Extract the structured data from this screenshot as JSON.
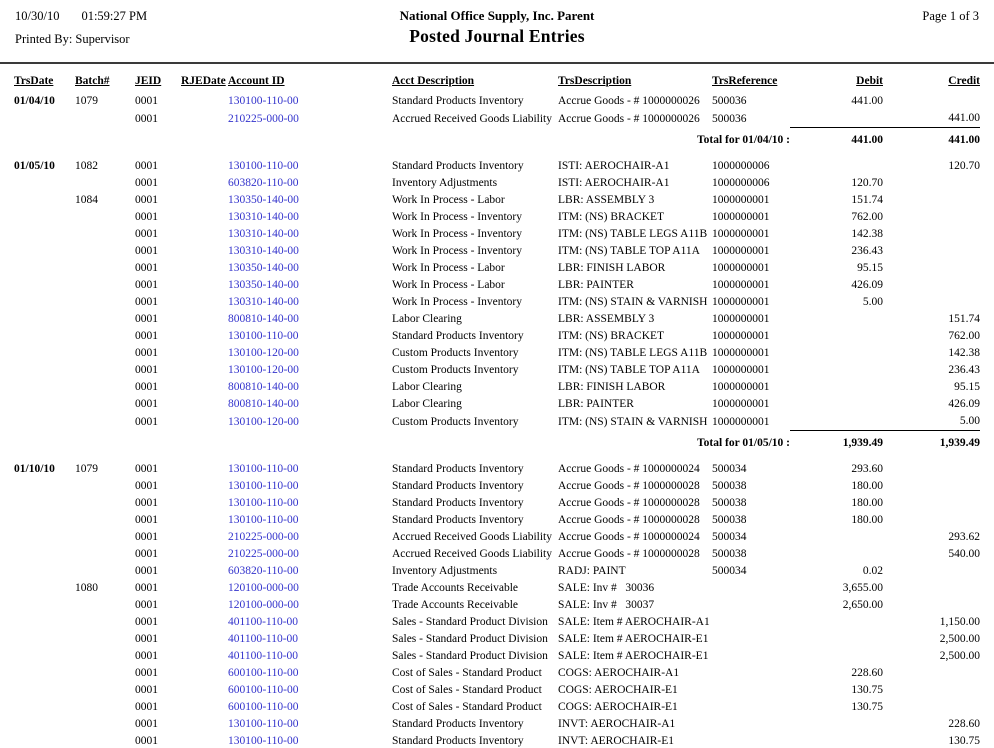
{
  "header": {
    "date": "10/30/10",
    "time": "01:59:27 PM",
    "printed_by_label": "Printed By:",
    "printed_by": "Supervisor",
    "company": "National Office Supply, Inc. Parent",
    "report_title": "Posted Journal Entries",
    "page_info": "Page 1 of  3"
  },
  "colors": {
    "account_link": "#3333CC",
    "header_rule": "#3a3a3a"
  },
  "table": {
    "columns": [
      "TrsDate",
      "Batch#",
      "JEID",
      "RJEDate",
      "Account ID",
      "Acct Description",
      "TrsDescription",
      "TrsReference",
      "Debit",
      "Credit"
    ],
    "rows": [
      {
        "type": "entry",
        "trsdate": "01/04/10",
        "batch": "1079",
        "jeid": "0001",
        "rjedate": "",
        "account": "130100-110-00",
        "acct_desc": "Standard Products Inventory",
        "trs_desc": "Accrue Goods - # 1000000026",
        "trs_ref": "500036",
        "debit": "441.00",
        "credit": ""
      },
      {
        "type": "entry",
        "trsdate": "",
        "batch": "",
        "jeid": "0001",
        "rjedate": "",
        "account": "210225-000-00",
        "acct_desc": "Accrued Received Goods Liability",
        "trs_desc": "Accrue Goods - # 1000000026",
        "trs_ref": "500036",
        "debit": "",
        "credit": "441.00"
      },
      {
        "type": "total",
        "label": "Total for 01/04/10 :",
        "debit": "441.00",
        "credit": "441.00"
      },
      {
        "type": "spacer"
      },
      {
        "type": "entry",
        "trsdate": "01/05/10",
        "batch": "1082",
        "jeid": "0001",
        "rjedate": "",
        "account": "130100-110-00",
        "acct_desc": "Standard Products Inventory",
        "trs_desc": "ISTI: AEROCHAIR-A1",
        "trs_ref": "1000000006",
        "debit": "",
        "credit": "120.70"
      },
      {
        "type": "entry",
        "trsdate": "",
        "batch": "",
        "jeid": "0001",
        "rjedate": "",
        "account": "603820-110-00",
        "acct_desc": "Inventory Adjustments",
        "trs_desc": "ISTI: AEROCHAIR-A1",
        "trs_ref": "1000000006",
        "debit": "120.70",
        "credit": ""
      },
      {
        "type": "entry",
        "trsdate": "",
        "batch": "1084",
        "jeid": "0001",
        "rjedate": "",
        "account": "130350-140-00",
        "acct_desc": "Work In Process - Labor",
        "trs_desc": "LBR: ASSEMBLY 3",
        "trs_ref": "1000000001",
        "debit": "151.74",
        "credit": ""
      },
      {
        "type": "entry",
        "trsdate": "",
        "batch": "",
        "jeid": "0001",
        "rjedate": "",
        "account": "130310-140-00",
        "acct_desc": "Work In Process - Inventory",
        "trs_desc": "ITM: (NS) BRACKET",
        "trs_ref": "1000000001",
        "debit": "762.00",
        "credit": ""
      },
      {
        "type": "entry",
        "trsdate": "",
        "batch": "",
        "jeid": "0001",
        "rjedate": "",
        "account": "130310-140-00",
        "acct_desc": "Work In Process - Inventory",
        "trs_desc": "ITM: (NS) TABLE LEGS A11B",
        "trs_ref": "1000000001",
        "debit": "142.38",
        "credit": ""
      },
      {
        "type": "entry",
        "trsdate": "",
        "batch": "",
        "jeid": "0001",
        "rjedate": "",
        "account": "130310-140-00",
        "acct_desc": "Work In Process - Inventory",
        "trs_desc": "ITM: (NS) TABLE TOP A11A",
        "trs_ref": "1000000001",
        "debit": "236.43",
        "credit": ""
      },
      {
        "type": "entry",
        "trsdate": "",
        "batch": "",
        "jeid": "0001",
        "rjedate": "",
        "account": "130350-140-00",
        "acct_desc": "Work In Process - Labor",
        "trs_desc": "LBR: FINISH LABOR",
        "trs_ref": "1000000001",
        "debit": "95.15",
        "credit": ""
      },
      {
        "type": "entry",
        "trsdate": "",
        "batch": "",
        "jeid": "0001",
        "rjedate": "",
        "account": "130350-140-00",
        "acct_desc": "Work In Process - Labor",
        "trs_desc": "LBR: PAINTER",
        "trs_ref": "1000000001",
        "debit": "426.09",
        "credit": ""
      },
      {
        "type": "entry",
        "trsdate": "",
        "batch": "",
        "jeid": "0001",
        "rjedate": "",
        "account": "130310-140-00",
        "acct_desc": "Work In Process - Inventory",
        "trs_desc": "ITM: (NS) STAIN & VARNISH",
        "trs_ref": "1000000001",
        "debit": "5.00",
        "credit": ""
      },
      {
        "type": "entry",
        "trsdate": "",
        "batch": "",
        "jeid": "0001",
        "rjedate": "",
        "account": "800810-140-00",
        "acct_desc": "Labor Clearing",
        "trs_desc": "LBR: ASSEMBLY 3",
        "trs_ref": "1000000001",
        "debit": "",
        "credit": "151.74"
      },
      {
        "type": "entry",
        "trsdate": "",
        "batch": "",
        "jeid": "0001",
        "rjedate": "",
        "account": "130100-110-00",
        "acct_desc": "Standard Products Inventory",
        "trs_desc": "ITM: (NS) BRACKET",
        "trs_ref": "1000000001",
        "debit": "",
        "credit": "762.00"
      },
      {
        "type": "entry",
        "trsdate": "",
        "batch": "",
        "jeid": "0001",
        "rjedate": "",
        "account": "130100-120-00",
        "acct_desc": "Custom Products Inventory",
        "trs_desc": "ITM: (NS) TABLE LEGS A11B",
        "trs_ref": "1000000001",
        "debit": "",
        "credit": "142.38"
      },
      {
        "type": "entry",
        "trsdate": "",
        "batch": "",
        "jeid": "0001",
        "rjedate": "",
        "account": "130100-120-00",
        "acct_desc": "Custom Products Inventory",
        "trs_desc": "ITM: (NS) TABLE TOP A11A",
        "trs_ref": "1000000001",
        "debit": "",
        "credit": "236.43"
      },
      {
        "type": "entry",
        "trsdate": "",
        "batch": "",
        "jeid": "0001",
        "rjedate": "",
        "account": "800810-140-00",
        "acct_desc": "Labor Clearing",
        "trs_desc": "LBR: FINISH LABOR",
        "trs_ref": "1000000001",
        "debit": "",
        "credit": "95.15"
      },
      {
        "type": "entry",
        "trsdate": "",
        "batch": "",
        "jeid": "0001",
        "rjedate": "",
        "account": "800810-140-00",
        "acct_desc": "Labor Clearing",
        "trs_desc": "LBR: PAINTER",
        "trs_ref": "1000000001",
        "debit": "",
        "credit": "426.09"
      },
      {
        "type": "entry",
        "trsdate": "",
        "batch": "",
        "jeid": "0001",
        "rjedate": "",
        "account": "130100-120-00",
        "acct_desc": "Custom Products Inventory",
        "trs_desc": "ITM: (NS) STAIN & VARNISH",
        "trs_ref": "1000000001",
        "debit": "",
        "credit": "5.00"
      },
      {
        "type": "total",
        "label": "Total for 01/05/10 :",
        "debit": "1,939.49",
        "credit": "1,939.49"
      },
      {
        "type": "spacer"
      },
      {
        "type": "entry",
        "trsdate": "01/10/10",
        "batch": "1079",
        "jeid": "0001",
        "rjedate": "",
        "account": "130100-110-00",
        "acct_desc": "Standard Products Inventory",
        "trs_desc": "Accrue Goods - # 1000000024",
        "trs_ref": "500034",
        "debit": "293.60",
        "credit": ""
      },
      {
        "type": "entry",
        "trsdate": "",
        "batch": "",
        "jeid": "0001",
        "rjedate": "",
        "account": "130100-110-00",
        "acct_desc": "Standard Products Inventory",
        "trs_desc": "Accrue Goods - # 1000000028",
        "trs_ref": "500038",
        "debit": "180.00",
        "credit": ""
      },
      {
        "type": "entry",
        "trsdate": "",
        "batch": "",
        "jeid": "0001",
        "rjedate": "",
        "account": "130100-110-00",
        "acct_desc": "Standard Products Inventory",
        "trs_desc": "Accrue Goods - # 1000000028",
        "trs_ref": "500038",
        "debit": "180.00",
        "credit": ""
      },
      {
        "type": "entry",
        "trsdate": "",
        "batch": "",
        "jeid": "0001",
        "rjedate": "",
        "account": "130100-110-00",
        "acct_desc": "Standard Products Inventory",
        "trs_desc": "Accrue Goods - # 1000000028",
        "trs_ref": "500038",
        "debit": "180.00",
        "credit": ""
      },
      {
        "type": "entry",
        "trsdate": "",
        "batch": "",
        "jeid": "0001",
        "rjedate": "",
        "account": "210225-000-00",
        "acct_desc": "Accrued Received Goods Liability",
        "trs_desc": "Accrue Goods - # 1000000024",
        "trs_ref": "500034",
        "debit": "",
        "credit": "293.62"
      },
      {
        "type": "entry",
        "trsdate": "",
        "batch": "",
        "jeid": "0001",
        "rjedate": "",
        "account": "210225-000-00",
        "acct_desc": "Accrued Received Goods Liability",
        "trs_desc": "Accrue Goods - # 1000000028",
        "trs_ref": "500038",
        "debit": "",
        "credit": "540.00"
      },
      {
        "type": "entry",
        "trsdate": "",
        "batch": "",
        "jeid": "0001",
        "rjedate": "",
        "account": "603820-110-00",
        "acct_desc": "Inventory Adjustments",
        "trs_desc": "RADJ: PAINT",
        "trs_ref": "500034",
        "debit": "0.02",
        "credit": ""
      },
      {
        "type": "entry",
        "trsdate": "",
        "batch": "1080",
        "jeid": "0001",
        "rjedate": "",
        "account": "120100-000-00",
        "acct_desc": "Trade Accounts Receivable",
        "trs_desc": "SALE: Inv #   30036",
        "trs_ref": "",
        "debit": "3,655.00",
        "credit": ""
      },
      {
        "type": "entry",
        "trsdate": "",
        "batch": "",
        "jeid": "0001",
        "rjedate": "",
        "account": "120100-000-00",
        "acct_desc": "Trade Accounts Receivable",
        "trs_desc": "SALE: Inv #   30037",
        "trs_ref": "",
        "debit": "2,650.00",
        "credit": ""
      },
      {
        "type": "entry",
        "trsdate": "",
        "batch": "",
        "jeid": "0001",
        "rjedate": "",
        "account": "401100-110-00",
        "acct_desc": "Sales - Standard Product Division",
        "trs_desc": "SALE: Item # AEROCHAIR-A1",
        "trs_ref": "",
        "debit": "",
        "credit": "1,150.00"
      },
      {
        "type": "entry",
        "trsdate": "",
        "batch": "",
        "jeid": "0001",
        "rjedate": "",
        "account": "401100-110-00",
        "acct_desc": "Sales - Standard Product Division",
        "trs_desc": "SALE: Item # AEROCHAIR-E1",
        "trs_ref": "",
        "debit": "",
        "credit": "2,500.00"
      },
      {
        "type": "entry",
        "trsdate": "",
        "batch": "",
        "jeid": "0001",
        "rjedate": "",
        "account": "401100-110-00",
        "acct_desc": "Sales - Standard Product Division",
        "trs_desc": "SALE: Item # AEROCHAIR-E1",
        "trs_ref": "",
        "debit": "",
        "credit": "2,500.00"
      },
      {
        "type": "entry",
        "trsdate": "",
        "batch": "",
        "jeid": "0001",
        "rjedate": "",
        "account": "600100-110-00",
        "acct_desc": "Cost of Sales - Standard Product",
        "trs_desc": "COGS: AEROCHAIR-A1",
        "trs_ref": "",
        "debit": "228.60",
        "credit": ""
      },
      {
        "type": "entry",
        "trsdate": "",
        "batch": "",
        "jeid": "0001",
        "rjedate": "",
        "account": "600100-110-00",
        "acct_desc": "Cost of Sales - Standard Product",
        "trs_desc": "COGS: AEROCHAIR-E1",
        "trs_ref": "",
        "debit": "130.75",
        "credit": ""
      },
      {
        "type": "entry",
        "trsdate": "",
        "batch": "",
        "jeid": "0001",
        "rjedate": "",
        "account": "600100-110-00",
        "acct_desc": "Cost of Sales - Standard Product",
        "trs_desc": "COGS: AEROCHAIR-E1",
        "trs_ref": "",
        "debit": "130.75",
        "credit": ""
      },
      {
        "type": "entry",
        "trsdate": "",
        "batch": "",
        "jeid": "0001",
        "rjedate": "",
        "account": "130100-110-00",
        "acct_desc": "Standard Products Inventory",
        "trs_desc": "INVT: AEROCHAIR-A1",
        "trs_ref": "",
        "debit": "",
        "credit": "228.60"
      },
      {
        "type": "entry",
        "trsdate": "",
        "batch": "",
        "jeid": "0001",
        "rjedate": "",
        "account": "130100-110-00",
        "acct_desc": "Standard Products Inventory",
        "trs_desc": "INVT: AEROCHAIR-E1",
        "trs_ref": "",
        "debit": "",
        "credit": "130.75"
      }
    ]
  }
}
